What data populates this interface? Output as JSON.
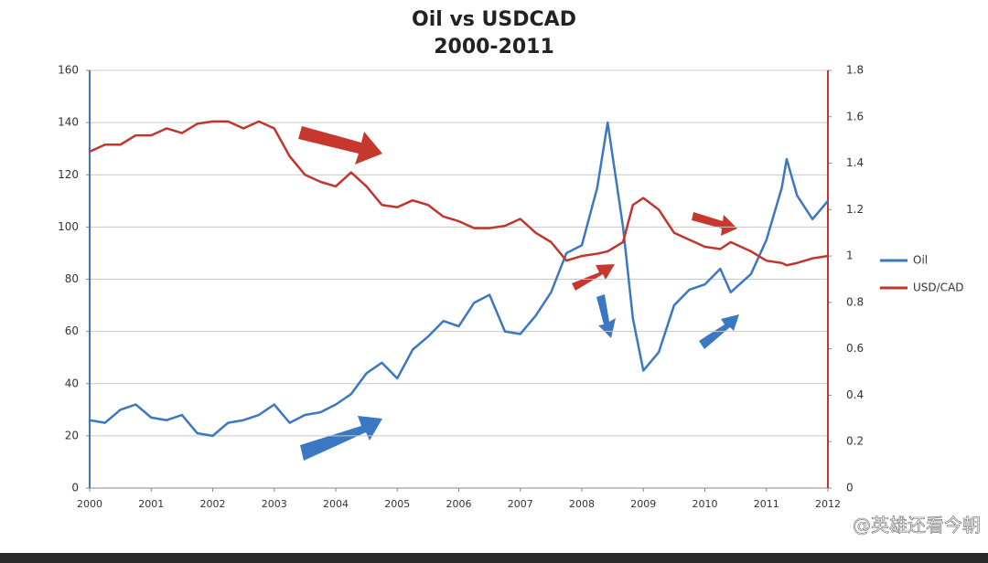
{
  "chart_data": {
    "type": "line",
    "title": "Oil vs USDCAD",
    "subtitle": "2000-2011",
    "x": [
      2000,
      2000.25,
      2000.5,
      2000.75,
      2001,
      2001.25,
      2001.5,
      2001.75,
      2002,
      2002.25,
      2002.5,
      2002.75,
      2003,
      2003.25,
      2003.5,
      2003.75,
      2004,
      2004.25,
      2004.5,
      2004.75,
      2005,
      2005.25,
      2005.5,
      2005.75,
      2006,
      2006.25,
      2006.5,
      2006.75,
      2007,
      2007.25,
      2007.5,
      2007.75,
      2008,
      2008.25,
      2008.42,
      2008.67,
      2008.83,
      2009,
      2009.25,
      2009.5,
      2009.75,
      2010,
      2010.25,
      2010.42,
      2010.75,
      2011,
      2011.25,
      2011.33,
      2011.5,
      2011.75,
      2012
    ],
    "series": [
      {
        "name": "Oil",
        "color": "#3a78c2",
        "values": [
          26,
          25,
          30,
          32,
          27,
          26,
          28,
          21,
          20,
          25,
          26,
          28,
          32,
          25,
          28,
          29,
          32,
          36,
          44,
          48,
          42,
          53,
          58,
          64,
          62,
          71,
          74,
          60,
          59,
          66,
          75,
          90,
          93,
          115,
          140,
          100,
          65,
          45,
          52,
          70,
          76,
          78,
          84,
          75,
          82,
          95,
          115,
          126,
          112,
          103,
          110
        ]
      },
      {
        "name": "USD/CAD",
        "color": "#c0362c",
        "axis": "y2",
        "values": [
          1.45,
          1.48,
          1.48,
          1.52,
          1.52,
          1.55,
          1.53,
          1.57,
          1.58,
          1.58,
          1.55,
          1.58,
          1.55,
          1.43,
          1.35,
          1.32,
          1.3,
          1.36,
          1.3,
          1.22,
          1.21,
          1.24,
          1.22,
          1.17,
          1.15,
          1.12,
          1.12,
          1.13,
          1.16,
          1.1,
          1.06,
          0.98,
          1.0,
          1.01,
          1.02,
          1.06,
          1.22,
          1.25,
          1.2,
          1.1,
          1.07,
          1.04,
          1.03,
          1.06,
          1.02,
          0.98,
          0.97,
          0.96,
          0.97,
          0.99,
          1.0
        ]
      }
    ],
    "xlim": [
      2000,
      2012
    ],
    "xticks": [
      2000,
      2001,
      2002,
      2003,
      2004,
      2005,
      2006,
      2007,
      2008,
      2009,
      2010,
      2011,
      2012
    ],
    "ylim": [
      0,
      160
    ],
    "yticks": [
      0,
      20,
      40,
      60,
      80,
      100,
      120,
      140,
      160
    ],
    "y2lim": [
      0,
      1.8
    ],
    "y2ticks": [
      0,
      0.2,
      0.4,
      0.6,
      0.8,
      1,
      1.2,
      1.4,
      1.6,
      1.8
    ],
    "grid": true,
    "legend": "right",
    "watermark": "@英雄还看今朝"
  }
}
